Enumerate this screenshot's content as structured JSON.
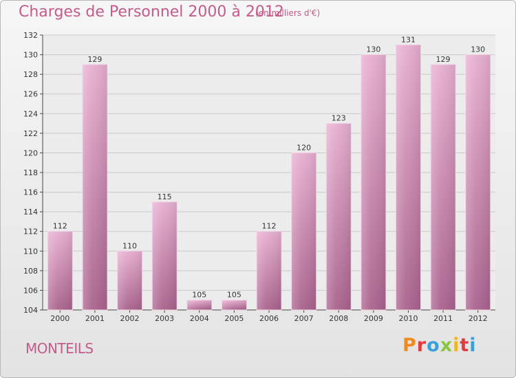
{
  "header": {
    "title": "Charges de Personnel 2000 à 2012",
    "subtitle": "(en milliers d'€)"
  },
  "footer": {
    "city": "MONTEILS",
    "brand": "Proxiti"
  },
  "colors": {
    "bar_top": "#e7aed0",
    "bar_bottom": "#a9628d",
    "title": "#c45b8a",
    "brand_letters": [
      "#f08a1c",
      "#e33b3b",
      "#3aa0d8",
      "#8cc63f",
      "#f0b41c",
      "#e33b3b",
      "#3aa0d8"
    ]
  },
  "chart_data": {
    "type": "bar",
    "title": "Charges de Personnel 2000 à 2012",
    "subtitle": "(en milliers d'€)",
    "xlabel": "",
    "ylabel": "",
    "categories": [
      "2000",
      "2001",
      "2002",
      "2003",
      "2004",
      "2005",
      "2006",
      "2007",
      "2008",
      "2009",
      "2010",
      "2011",
      "2012"
    ],
    "values": [
      112,
      129,
      110,
      115,
      105,
      105,
      112,
      120,
      123,
      130,
      131,
      129,
      130
    ],
    "ylim": [
      104,
      132
    ],
    "yticks": [
      104,
      106,
      108,
      110,
      112,
      114,
      116,
      118,
      120,
      122,
      124,
      126,
      128,
      130,
      132
    ],
    "grid": true,
    "legend": "none"
  }
}
